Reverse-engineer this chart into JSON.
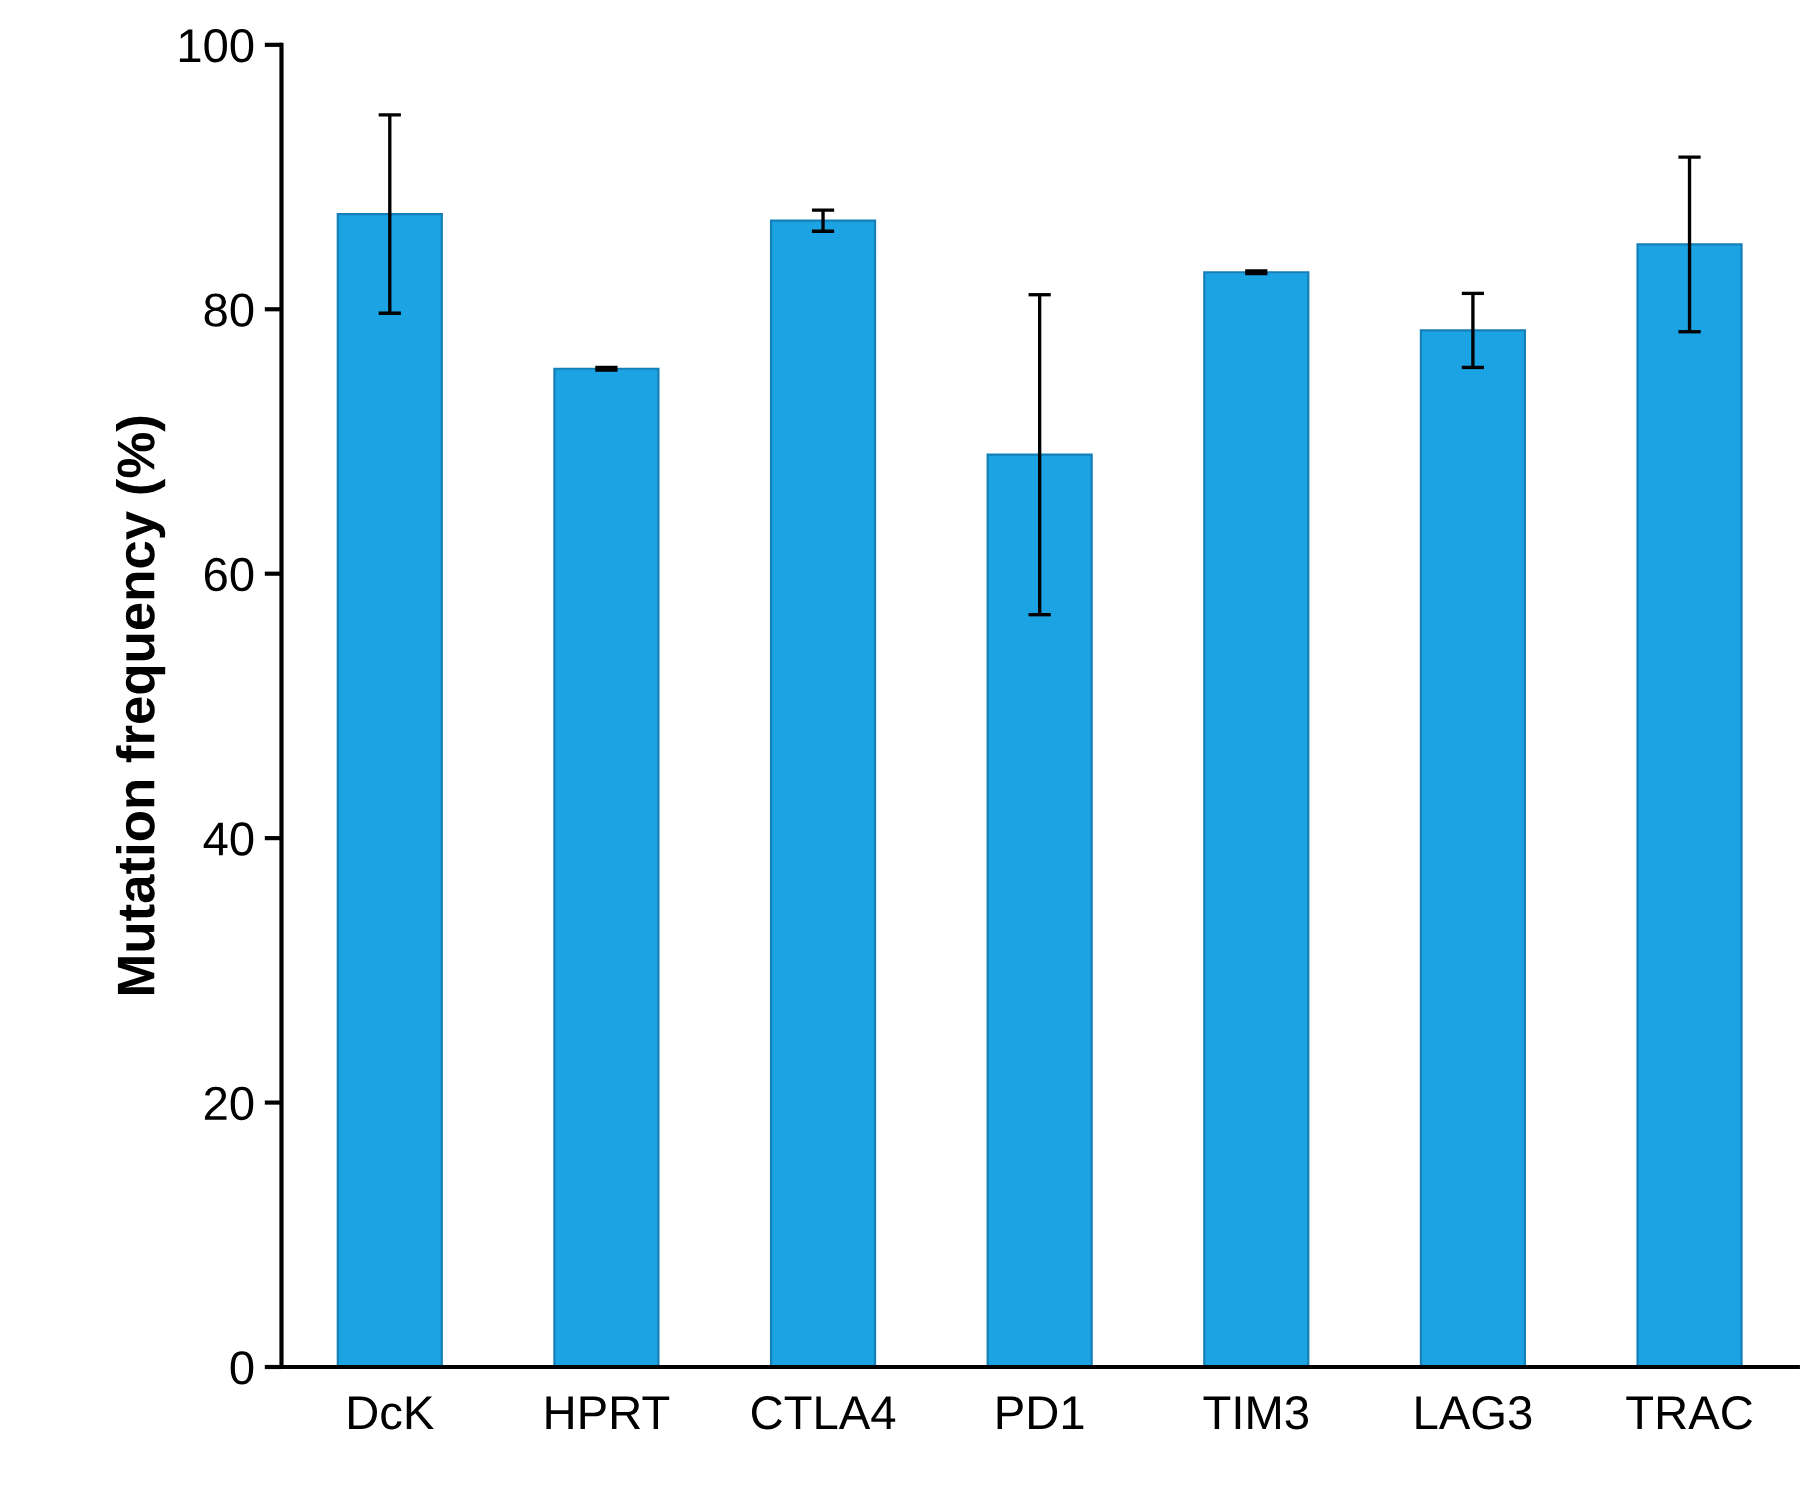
{
  "chart_data": {
    "type": "bar",
    "ylabel": "Mutation frequency (%)",
    "categories": [
      "DcK",
      "HPRT",
      "CTLA4",
      "PD1",
      "TIM3",
      "LAG3",
      "TRAC"
    ],
    "values": [
      87.2,
      75.5,
      86.7,
      69.0,
      82.8,
      78.4,
      84.9
    ],
    "errors": [
      7.5,
      0.1,
      0.8,
      12.1,
      0.1,
      2.8,
      6.6
    ],
    "color": "#1ca3e3",
    "ylim": [
      0,
      100
    ],
    "yticks": [
      0,
      20,
      40,
      60,
      80,
      100
    ],
    "grid": false
  }
}
